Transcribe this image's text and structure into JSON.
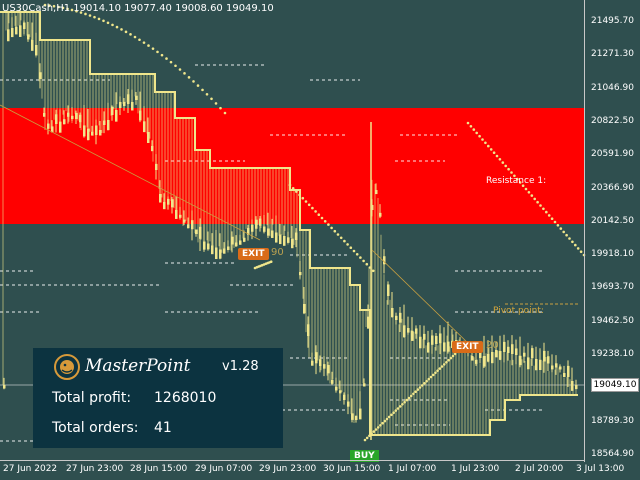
{
  "chart": {
    "symbol_line": "US30Cash,H1  19014.10 19077.40 19008.60 19049.10",
    "current_price": "19049.10",
    "price_ticks": [
      "21495.70",
      "21271.30",
      "21046.90",
      "20822.50",
      "20591.90",
      "20366.90",
      "20142.50",
      "19918.10",
      "19693.70",
      "19462.50",
      "19238.10",
      "19013.70",
      "18789.30",
      "18564.90"
    ],
    "time_ticks": [
      "27 Jun 2022",
      "27 Jun 23:00",
      "28 Jun 15:00",
      "29 Jun 07:00",
      "29 Jun 23:00",
      "30 Jun 15:00",
      "1 Jul 07:00",
      "1 Jul 23:00",
      "2 Jul 20:00",
      "3 Jul 13:00"
    ],
    "resistance_label": "Resistance 1:",
    "pivot_label": "Pivot point:",
    "exit_label": "EXIT",
    "buy_label": "BUY",
    "colors": {
      "background": "#2f4f4f",
      "resistance_zone": "#ff0000",
      "candle": "#f0e68c",
      "level_line": "#ffffff",
      "pivot": "#c8a040"
    }
  },
  "panel": {
    "product_name": "MasterPoint",
    "version": "v1.28",
    "profit_label": "Total profit:",
    "profit_value": "1268010",
    "orders_label": "Total orders:",
    "orders_value": "41"
  }
}
